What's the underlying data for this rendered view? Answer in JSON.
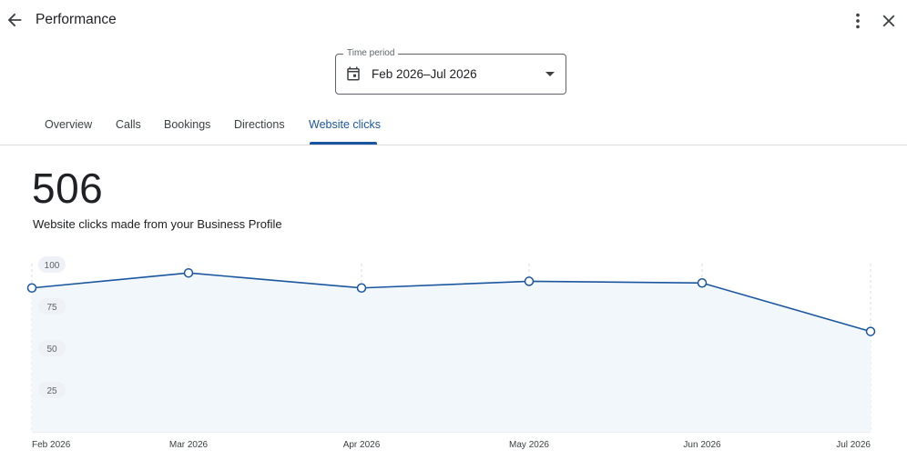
{
  "header": {
    "title": "Performance",
    "back_icon": "arrow-back-icon",
    "more_icon": "more-vert-icon",
    "close_icon": "close-icon"
  },
  "time_period": {
    "label": "Time period",
    "value": "Feb 2026–Jul 2026",
    "icon": "calendar-icon"
  },
  "tabs": [
    {
      "label": "Overview",
      "active": false
    },
    {
      "label": "Calls",
      "active": false
    },
    {
      "label": "Bookings",
      "active": false
    },
    {
      "label": "Directions",
      "active": false
    },
    {
      "label": "Website clicks",
      "active": true
    }
  ],
  "metric": {
    "value": "506",
    "description": "Website clicks made from your Business Profile"
  },
  "chart_data": {
    "type": "area",
    "categories": [
      "Feb 2026",
      "Mar 2026",
      "Apr 2026",
      "May 2026",
      "Jun 2026",
      "Jul 2026"
    ],
    "series": [
      {
        "values": [
          86,
          95,
          86,
          90,
          89,
          60
        ]
      }
    ],
    "y_ticks": [
      "25",
      "50",
      "75",
      "100"
    ],
    "ylim": [
      0,
      100
    ],
    "grid": "vertical dashed",
    "colors": {
      "line": "#1a56a0",
      "fill": "#f2f7fc",
      "marker_fill": "#ffffff"
    }
  },
  "colors": {
    "accent": "#1a56a0",
    "text": "#202124",
    "muted": "#5f6368",
    "divider": "#dadce0"
  }
}
